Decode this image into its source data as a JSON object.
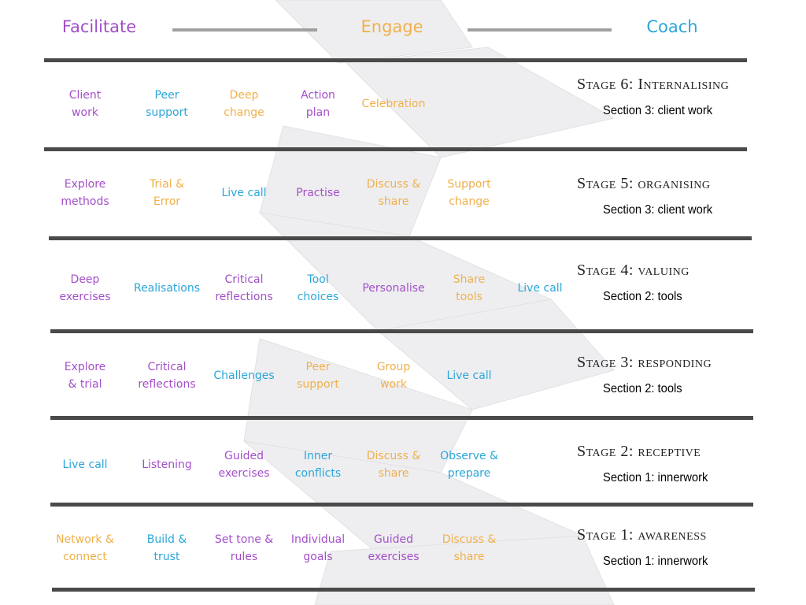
{
  "header": {
    "left": "Facilitate",
    "middle": "Engage",
    "right": "Coach"
  },
  "colors": {
    "purple": "#a34fc9",
    "orange": "#f0b04a",
    "blue": "#2ba6d9"
  },
  "stages": [
    {
      "title": "Stage 6: Internalising",
      "section": "Section 3: client work",
      "items": [
        {
          "text": "Client\nwork",
          "color": "purple"
        },
        {
          "text": "Peer\nsupport",
          "color": "blue"
        },
        {
          "text": "Deep\nchange",
          "color": "orange"
        },
        {
          "text": "Action\nplan",
          "color": "purple"
        },
        {
          "text": "Celebration",
          "color": "orange"
        }
      ]
    },
    {
      "title": "Stage 5: organising",
      "section": "Section 3: client work",
      "items": [
        {
          "text": "Explore\nmethods",
          "color": "purple"
        },
        {
          "text": "Trial &\nError",
          "color": "orange"
        },
        {
          "text": "Live call",
          "color": "blue"
        },
        {
          "text": "Practise",
          "color": "purple"
        },
        {
          "text": "Discuss &\nshare",
          "color": "orange"
        },
        {
          "text": "Support\nchange",
          "color": "orange"
        }
      ]
    },
    {
      "title": "Stage 4: valuing",
      "section": "Section 2: tools",
      "items": [
        {
          "text": "Deep\nexercises",
          "color": "purple"
        },
        {
          "text": "Realisations",
          "color": "blue"
        },
        {
          "text": "Critical\nreflections",
          "color": "purple"
        },
        {
          "text": "Tool\nchoices",
          "color": "blue"
        },
        {
          "text": "Personalise",
          "color": "purple"
        },
        {
          "text": "Share\ntools",
          "color": "orange"
        },
        {
          "text": "Live call",
          "color": "blue"
        }
      ]
    },
    {
      "title": "Stage 3: responding",
      "section": "Section 2: tools",
      "items": [
        {
          "text": "Explore\n& trial",
          "color": "purple"
        },
        {
          "text": "Critical\nreflections",
          "color": "purple"
        },
        {
          "text": "Challenges",
          "color": "blue"
        },
        {
          "text": "Peer\nsupport",
          "color": "orange"
        },
        {
          "text": "Group\nwork",
          "color": "orange"
        },
        {
          "text": "Live call",
          "color": "blue"
        }
      ]
    },
    {
      "title": "Stage 2: receptive",
      "section": "Section 1: innerwork",
      "items": [
        {
          "text": "Live call",
          "color": "blue"
        },
        {
          "text": "Listening",
          "color": "purple"
        },
        {
          "text": "Guided\nexercises",
          "color": "purple"
        },
        {
          "text": "Inner\nconflicts",
          "color": "blue"
        },
        {
          "text": "Discuss &\nshare",
          "color": "orange"
        },
        {
          "text": "Observe &\nprepare",
          "color": "blue"
        }
      ]
    },
    {
      "title": "Stage 1: awareness",
      "section": "Section 1: innerwork",
      "items": [
        {
          "text": "Network &\nconnect",
          "color": "orange"
        },
        {
          "text": "Build &\ntrust",
          "color": "blue"
        },
        {
          "text": "Set tone &\nrules",
          "color": "purple"
        },
        {
          "text": "Individual\ngoals",
          "color": "purple"
        },
        {
          "text": "Guided\nexercises",
          "color": "purple"
        },
        {
          "text": "Discuss &\nshare",
          "color": "orange"
        }
      ]
    }
  ]
}
